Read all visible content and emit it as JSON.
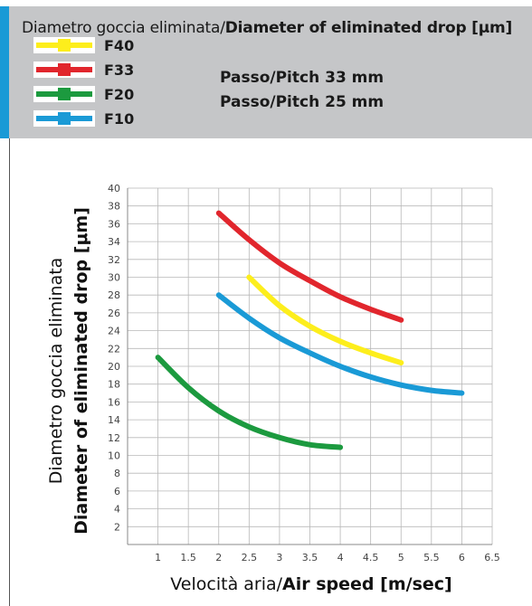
{
  "header": {
    "title_regular": "Diametro goccia eliminata/",
    "title_bold": "Diameter of eliminated drop [μm]",
    "accent_color": "#1a9ad6",
    "background_color": "#c5c6c8",
    "pitch_lines": [
      "Passo/Pitch 33 mm",
      "Passo/Pitch 25 mm"
    ]
  },
  "chart_data": {
    "type": "line",
    "title": "",
    "xlabel_regular": "Velocità aria/",
    "xlabel_bold": "Air speed [m/sec]",
    "ylabel_line1": "Diametro goccia eliminata",
    "ylabel_line2": "Diameter of eliminated drop  [μm]",
    "xlim": [
      0.5,
      6.5
    ],
    "ylim": [
      0,
      40
    ],
    "grid": true,
    "legend_placement": "top-left",
    "x_ticks": [
      "1",
      "1.5",
      "2",
      "2.5",
      "3",
      "3.5",
      "4",
      "4.5",
      "5",
      "5.5",
      "6",
      "6.5"
    ],
    "y_ticks": [
      "2",
      "4",
      "6",
      "8",
      "10",
      "12",
      "14",
      "16",
      "18",
      "20",
      "22",
      "24",
      "26",
      "28",
      "30",
      "32",
      "34",
      "36",
      "38",
      "40"
    ],
    "series": [
      {
        "name": "F40",
        "color": "#fdee1c",
        "x": [
          2.5,
          3.0,
          3.5,
          4.0,
          4.5,
          5.0
        ],
        "y": [
          30.0,
          26.8,
          24.5,
          22.8,
          21.5,
          20.4
        ]
      },
      {
        "name": "F33",
        "color": "#e1262d",
        "x": [
          2.0,
          2.5,
          3.0,
          3.5,
          4.0,
          4.5,
          5.0
        ],
        "y": [
          37.2,
          34.2,
          31.6,
          29.6,
          27.8,
          26.4,
          25.2
        ]
      },
      {
        "name": "F20",
        "color": "#1c9a3f",
        "x": [
          1.0,
          1.5,
          2.0,
          2.5,
          3.0,
          3.5,
          4.0
        ],
        "y": [
          21.0,
          17.6,
          15.0,
          13.2,
          12.0,
          11.2,
          10.9
        ]
      },
      {
        "name": "F10",
        "color": "#1a9ad6",
        "x": [
          2.0,
          2.5,
          3.0,
          3.5,
          4.0,
          4.5,
          5.0,
          5.5,
          6.0
        ],
        "y": [
          28.0,
          25.4,
          23.2,
          21.5,
          20.0,
          18.8,
          17.9,
          17.3,
          17.0
        ]
      }
    ]
  }
}
